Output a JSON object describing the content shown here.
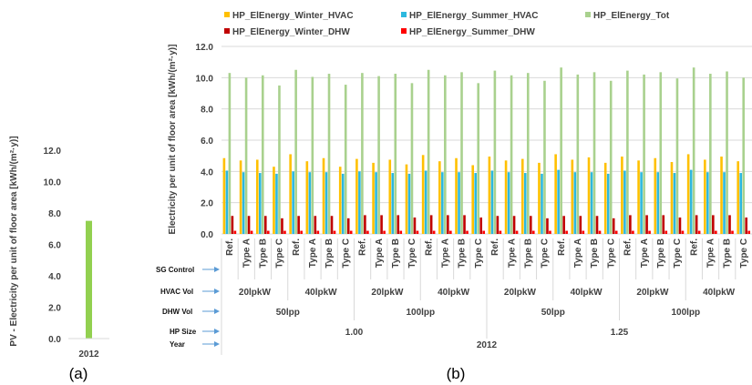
{
  "panel_labels": {
    "a": "(a)",
    "b": "(b)"
  },
  "colors": {
    "pv_bar": "#92d050",
    "winter_hvac": "#ffc000",
    "summer_hvac": "#2cb8de",
    "tot": "#a9d18e",
    "winter_dhw": "#c00000",
    "summer_dhw": "#ff0000",
    "grid": "#d9d9d9",
    "arrow": "#5b9bd5"
  },
  "chart_data": [
    {
      "id": "a",
      "type": "bar",
      "categories": [
        "2012"
      ],
      "values": [
        7.5
      ],
      "ylabel": "PV - Electricity per unit of floor area [kWh/(m²·y)]",
      "ylim": [
        0,
        12
      ],
      "yticks": [
        "0.0",
        "2.0",
        "4.0",
        "6.0",
        "8.0",
        "10.0",
        "12.0"
      ],
      "grid": false
    },
    {
      "id": "b",
      "type": "bar",
      "ylabel": "Electricity per unit of floor area [kWh/(m²·y)]",
      "ylim": [
        0,
        12
      ],
      "yticks": [
        "0.0",
        "2.0",
        "4.0",
        "6.0",
        "8.0",
        "10.0",
        "12.0"
      ],
      "grid": true,
      "legend_position": "top",
      "categories": [
        "Ref.",
        "Type A",
        "Type B",
        "Type C",
        "Ref.",
        "Type A",
        "Type B",
        "Type C",
        "Ref.",
        "Type A",
        "Type B",
        "Type C",
        "Ref.",
        "Type A",
        "Type B",
        "Type C",
        "Ref.",
        "Type A",
        "Type B",
        "Type C",
        "Ref.",
        "Type A",
        "Type B",
        "Type C",
        "Ref.",
        "Type A",
        "Type B",
        "Type C",
        "Ref.",
        "Type A",
        "Type B",
        "Type C"
      ],
      "series": [
        {
          "name": "HP_ElEnergy_Winter_HVAC",
          "color": "#ffc000",
          "values": [
            4.85,
            4.7,
            4.75,
            4.3,
            5.1,
            4.65,
            4.85,
            4.3,
            4.8,
            4.55,
            4.75,
            4.45,
            5.05,
            4.65,
            4.85,
            4.4,
            4.95,
            4.7,
            4.8,
            4.55,
            5.1,
            4.75,
            4.9,
            4.55,
            4.95,
            4.7,
            4.85,
            4.6,
            5.1,
            4.75,
            4.95,
            4.65
          ]
        },
        {
          "name": "HP_ElEnergy_Summer_HVAC",
          "color": "#2cb8de",
          "values": [
            4.05,
            3.95,
            3.9,
            3.85,
            4.0,
            3.95,
            3.95,
            3.85,
            4.0,
            3.95,
            3.9,
            3.85,
            4.05,
            3.95,
            3.95,
            3.9,
            4.05,
            3.95,
            3.9,
            3.85,
            4.1,
            3.95,
            3.95,
            3.85,
            4.05,
            3.95,
            3.95,
            3.9,
            4.1,
            3.95,
            3.95,
            3.9
          ]
        },
        {
          "name": "HP_ElEnergy_Tot",
          "color": "#a9d18e",
          "values": [
            10.3,
            10.0,
            10.15,
            9.5,
            10.5,
            10.05,
            10.25,
            9.55,
            10.3,
            10.1,
            10.25,
            9.65,
            10.5,
            10.15,
            10.35,
            9.65,
            10.45,
            10.15,
            10.3,
            9.8,
            10.65,
            10.2,
            10.35,
            9.8,
            10.45,
            10.2,
            10.35,
            9.95,
            10.65,
            10.25,
            10.4,
            10.0
          ]
        },
        {
          "name": "HP_ElEnergy_Winter_DHW",
          "color": "#c00000",
          "values": [
            1.15,
            1.15,
            1.15,
            1.0,
            1.15,
            1.15,
            1.15,
            1.0,
            1.2,
            1.2,
            1.2,
            1.05,
            1.2,
            1.2,
            1.2,
            1.05,
            1.15,
            1.15,
            1.15,
            1.0,
            1.15,
            1.15,
            1.15,
            1.0,
            1.2,
            1.2,
            1.2,
            1.05,
            1.2,
            1.2,
            1.2,
            1.05
          ]
        },
        {
          "name": "HP_ElEnergy_Summer_DHW",
          "color": "#ff0000",
          "values": [
            0.2,
            0.2,
            0.2,
            0.2,
            0.2,
            0.2,
            0.2,
            0.2,
            0.2,
            0.2,
            0.2,
            0.2,
            0.2,
            0.2,
            0.2,
            0.2,
            0.2,
            0.2,
            0.2,
            0.2,
            0.2,
            0.2,
            0.2,
            0.2,
            0.2,
            0.2,
            0.2,
            0.2,
            0.2,
            0.2,
            0.2,
            0.2
          ]
        }
      ],
      "hierarchy_rows": [
        {
          "name": "SG Control",
          "groups": []
        },
        {
          "name": "HVAC Vol",
          "groups": [
            "20lpkW",
            "40lpkW",
            "20lpkW",
            "40lpkW",
            "20lpkW",
            "40lpkW",
            "20lpkW",
            "40lpkW"
          ]
        },
        {
          "name": "DHW Vol",
          "groups": [
            "50lpp",
            "100lpp",
            "50lpp",
            "100lpp"
          ]
        },
        {
          "name": "HP Size",
          "groups": [
            "1.00",
            "1.25"
          ]
        },
        {
          "name": "Year",
          "groups": [
            "2012"
          ]
        }
      ]
    }
  ]
}
